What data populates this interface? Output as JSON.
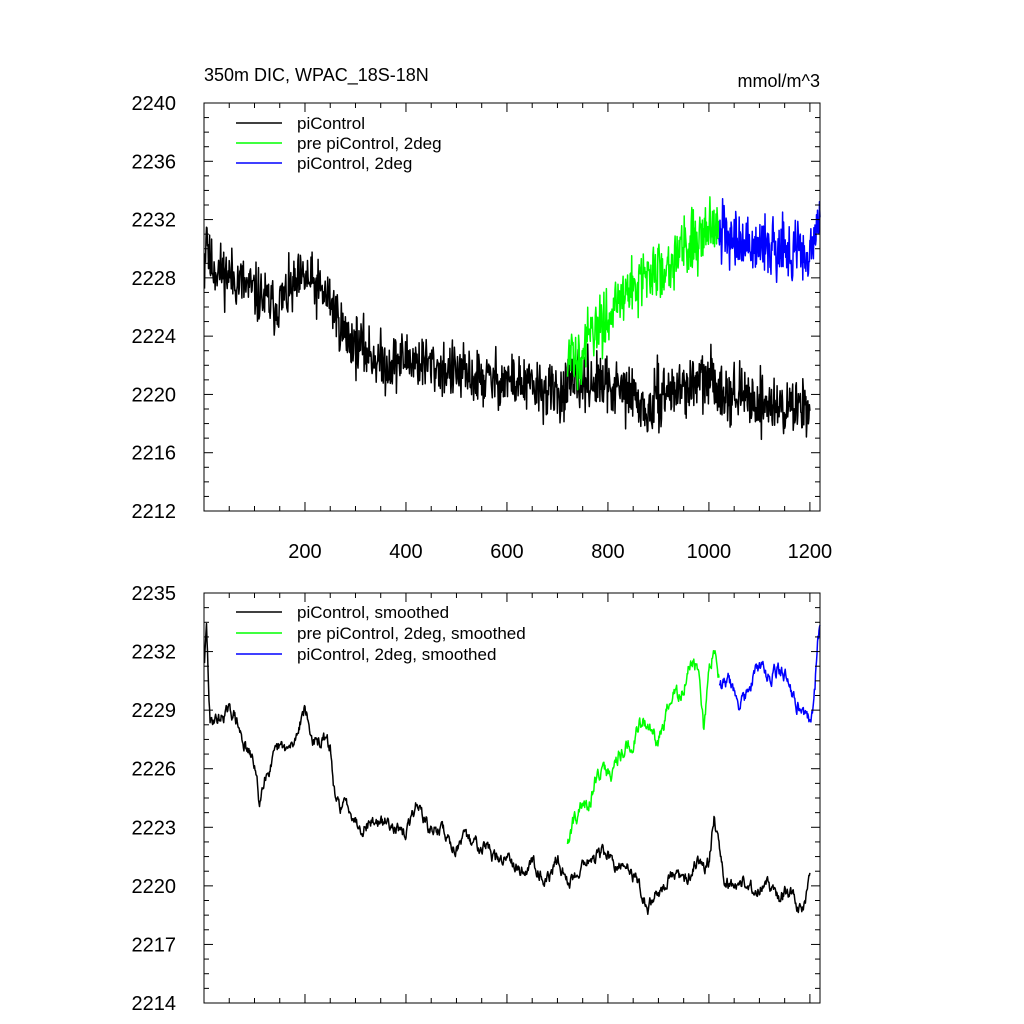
{
  "chart_data": [
    {
      "type": "line",
      "title": "350m DIC, WPAC_18S-18N",
      "units": "mmol/m^3",
      "xlim": [
        0,
        1220
      ],
      "ylim": [
        2212,
        2240
      ],
      "xticks": [
        200,
        400,
        600,
        800,
        1000,
        1200
      ],
      "xtick_labels": [
        "200",
        "400",
        "600",
        "800",
        "1000",
        "1200"
      ],
      "yticks": [
        2212,
        2216,
        2220,
        2224,
        2228,
        2232,
        2236,
        2240
      ],
      "ytick_labels": [
        "2212",
        "2216",
        "2220",
        "2224",
        "2228",
        "2232",
        "2236",
        "2240"
      ],
      "legend_position": "top-left",
      "series": [
        {
          "name": "piControl",
          "color": "#000000",
          "style": "noisy",
          "noise": 1.7,
          "x": [
            1,
            5,
            10,
            30,
            60,
            100,
            140,
            200,
            250,
            280,
            320,
            360,
            400,
            450,
            500,
            550,
            600,
            650,
            700,
            720,
            760,
            800,
            850,
            880,
            900,
            950,
            1000,
            1050,
            1100,
            1150,
            1200
          ],
          "y": [
            2228.5,
            2232,
            2229,
            2228.5,
            2228,
            2227,
            2226,
            2228,
            2226.5,
            2224,
            2223,
            2222,
            2222.5,
            2222,
            2221.5,
            2221,
            2221,
            2220.5,
            2220,
            2220.5,
            2221,
            2220.5,
            2220,
            2218.5,
            2220,
            2220.5,
            2221,
            2220,
            2219.5,
            2219,
            2219.5
          ]
        },
        {
          "name": "pre piControl, 2deg",
          "color": "#00ff00",
          "style": "noisy",
          "noise": 1.8,
          "x": [
            720,
            760,
            800,
            850,
            900,
            950,
            1000,
            1020
          ],
          "y": [
            2222,
            2223.5,
            2225.5,
            2227.5,
            2228.5,
            2230,
            2231.5,
            2232
          ]
        },
        {
          "name": "piControl, 2deg",
          "color": "#0000ff",
          "style": "noisy",
          "noise": 1.9,
          "x": [
            1020,
            1050,
            1100,
            1150,
            1200,
            1220
          ],
          "y": [
            2231,
            2230.5,
            2230.5,
            2230,
            2229.5,
            2232
          ]
        }
      ]
    },
    {
      "type": "line",
      "title": "",
      "units": "",
      "xlim": [
        0,
        1220
      ],
      "ylim": [
        2214,
        2235
      ],
      "xticks": [
        200,
        400,
        600,
        800,
        1000,
        1200
      ],
      "xtick_labels": [],
      "yticks": [
        2214,
        2217,
        2220,
        2223,
        2226,
        2229,
        2232,
        2235
      ],
      "ytick_labels": [
        "2214",
        "2217",
        "2220",
        "2223",
        "2226",
        "2229",
        "2232",
        "2235"
      ],
      "legend_position": "top-left",
      "series": [
        {
          "name": "piControl, smoothed",
          "color": "#000000",
          "style": "smooth",
          "noise": 0.55,
          "x": [
            1,
            5,
            12,
            20,
            40,
            60,
            80,
            100,
            110,
            120,
            140,
            160,
            180,
            200,
            210,
            220,
            250,
            260,
            280,
            300,
            330,
            360,
            390,
            420,
            450,
            480,
            510,
            540,
            570,
            600,
            620,
            650,
            680,
            700,
            720,
            740,
            760,
            780,
            800,
            820,
            860,
            880,
            900,
            950,
            1000,
            1010,
            1030,
            1060,
            1100,
            1150,
            1190,
            1200
          ],
          "y": [
            2231.5,
            2233,
            2228,
            2228.5,
            2229,
            2228.5,
            2227.5,
            2226,
            2224,
            2226,
            2226.5,
            2227,
            2227.5,
            2229,
            2228,
            2227.5,
            2227,
            2224.5,
            2224,
            2223.5,
            2223,
            2223.5,
            2222.5,
            2224,
            2223,
            2222.5,
            2222,
            2222.5,
            2221.5,
            2221.5,
            2221,
            2221,
            2220.5,
            2221,
            2220.5,
            2220.5,
            2221.5,
            2221.5,
            2221.5,
            2221,
            2220.5,
            2218.5,
            2220,
            2220.5,
            2221.5,
            2223.5,
            2220.5,
            2220,
            2220,
            2219.5,
            2219,
            2220.5
          ]
        },
        {
          "name": "pre piControl, 2deg, smoothed",
          "color": "#00ff00",
          "style": "smooth",
          "noise": 0.65,
          "x": [
            720,
            740,
            760,
            780,
            800,
            840,
            860,
            880,
            900,
            930,
            960,
            980,
            990,
            1000,
            1010,
            1020
          ],
          "y": [
            2222.5,
            2223.5,
            2224.5,
            2225.5,
            2226,
            2227,
            2228.5,
            2228,
            2227.5,
            2229.5,
            2231,
            2231,
            2228,
            2231,
            2232,
            2230.5
          ]
        },
        {
          "name": "piControl, 2deg, smoothed",
          "color": "#0000ff",
          "style": "smooth",
          "noise": 0.6,
          "x": [
            1020,
            1040,
            1060,
            1080,
            1100,
            1130,
            1160,
            1180,
            1190,
            1200,
            1205,
            1210,
            1215,
            1220
          ],
          "y": [
            2230.5,
            2230.5,
            2229,
            2230.5,
            2231,
            2231,
            2230.5,
            2229,
            2228.5,
            2228.5,
            2229,
            2230.5,
            2233,
            2233.5
          ]
        }
      ]
    }
  ]
}
